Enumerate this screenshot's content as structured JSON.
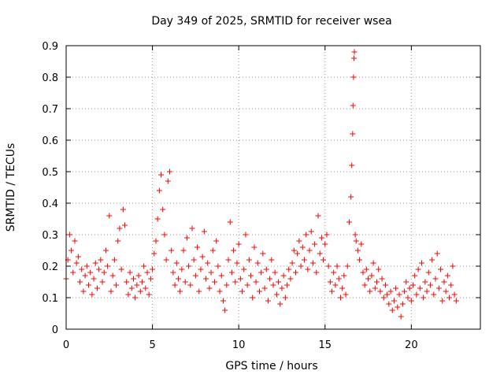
{
  "chart_data": {
    "type": "scatter",
    "title": "Day 349 of 2025, SRMTID for receiver wsea",
    "xlabel": "GPS time / hours",
    "ylabel": "SRMTID / TECUs",
    "xlim": [
      0,
      24
    ],
    "ylim": [
      0,
      0.9
    ],
    "xticks": [
      0,
      5,
      10,
      15,
      20
    ],
    "xtick_labels": [
      "0",
      "5",
      "10",
      "15",
      "20"
    ],
    "yticks": [
      0,
      0.1,
      0.2,
      0.3,
      0.4,
      0.5,
      0.6,
      0.7,
      0.8,
      0.9
    ],
    "ytick_labels": [
      "0",
      "0.1",
      "0.2",
      "0.3",
      "0.4",
      "0.5",
      "0.6",
      "0.7",
      "0.8",
      "0.9"
    ],
    "grid": true,
    "marker": "+",
    "series_color": "#ff0000",
    "series": [
      {
        "name": "SRMTID",
        "points": [
          [
            0.0,
            0.16
          ],
          [
            0.1,
            0.22
          ],
          [
            0.2,
            0.3
          ],
          [
            0.3,
            0.25
          ],
          [
            0.4,
            0.18
          ],
          [
            0.5,
            0.28
          ],
          [
            0.6,
            0.21
          ],
          [
            0.7,
            0.23
          ],
          [
            0.8,
            0.15
          ],
          [
            0.9,
            0.19
          ],
          [
            1.0,
            0.12
          ],
          [
            1.1,
            0.17
          ],
          [
            1.2,
            0.2
          ],
          [
            1.3,
            0.14
          ],
          [
            1.4,
            0.18
          ],
          [
            1.5,
            0.11
          ],
          [
            1.6,
            0.16
          ],
          [
            1.7,
            0.21
          ],
          [
            1.8,
            0.13
          ],
          [
            1.9,
            0.19
          ],
          [
            2.0,
            0.22
          ],
          [
            2.1,
            0.15
          ],
          [
            2.2,
            0.18
          ],
          [
            2.3,
            0.25
          ],
          [
            2.4,
            0.2
          ],
          [
            2.5,
            0.36
          ],
          [
            2.6,
            0.12
          ],
          [
            2.7,
            0.17
          ],
          [
            2.8,
            0.22
          ],
          [
            2.9,
            0.14
          ],
          [
            3.0,
            0.28
          ],
          [
            3.1,
            0.32
          ],
          [
            3.2,
            0.19
          ],
          [
            3.3,
            0.38
          ],
          [
            3.4,
            0.33
          ],
          [
            3.5,
            0.15
          ],
          [
            3.6,
            0.11
          ],
          [
            3.7,
            0.18
          ],
          [
            3.8,
            0.13
          ],
          [
            3.9,
            0.16
          ],
          [
            4.0,
            0.1
          ],
          [
            4.1,
            0.14
          ],
          [
            4.2,
            0.17
          ],
          [
            4.3,
            0.12
          ],
          [
            4.4,
            0.15
          ],
          [
            4.5,
            0.2
          ],
          [
            4.6,
            0.13
          ],
          [
            4.7,
            0.18
          ],
          [
            4.8,
            0.11
          ],
          [
            4.9,
            0.16
          ],
          [
            5.0,
            0.19
          ],
          [
            5.1,
            0.24
          ],
          [
            5.2,
            0.28
          ],
          [
            5.3,
            0.35
          ],
          [
            5.4,
            0.44
          ],
          [
            5.5,
            0.49
          ],
          [
            5.6,
            0.38
          ],
          [
            5.7,
            0.3
          ],
          [
            5.8,
            0.22
          ],
          [
            5.9,
            0.47
          ],
          [
            6.0,
            0.5
          ],
          [
            6.1,
            0.25
          ],
          [
            6.2,
            0.18
          ],
          [
            6.3,
            0.14
          ],
          [
            6.4,
            0.21
          ],
          [
            6.5,
            0.16
          ],
          [
            6.6,
            0.12
          ],
          [
            6.7,
            0.19
          ],
          [
            6.8,
            0.25
          ],
          [
            6.9,
            0.15
          ],
          [
            7.0,
            0.29
          ],
          [
            7.1,
            0.2
          ],
          [
            7.2,
            0.14
          ],
          [
            7.3,
            0.32
          ],
          [
            7.4,
            0.22
          ],
          [
            7.5,
            0.17
          ],
          [
            7.6,
            0.26
          ],
          [
            7.7,
            0.12
          ],
          [
            7.8,
            0.19
          ],
          [
            7.9,
            0.23
          ],
          [
            8.0,
            0.31
          ],
          [
            8.1,
            0.16
          ],
          [
            8.2,
            0.21
          ],
          [
            8.3,
            0.13
          ],
          [
            8.4,
            0.18
          ],
          [
            8.5,
            0.25
          ],
          [
            8.6,
            0.15
          ],
          [
            8.7,
            0.28
          ],
          [
            8.8,
            0.2
          ],
          [
            8.9,
            0.12
          ],
          [
            9.0,
            0.17
          ],
          [
            9.1,
            0.09
          ],
          [
            9.2,
            0.06
          ],
          [
            9.3,
            0.14
          ],
          [
            9.4,
            0.22
          ],
          [
            9.5,
            0.34
          ],
          [
            9.6,
            0.18
          ],
          [
            9.7,
            0.25
          ],
          [
            9.8,
            0.15
          ],
          [
            9.9,
            0.21
          ],
          [
            10.0,
            0.27
          ],
          [
            10.1,
            0.16
          ],
          [
            10.2,
            0.12
          ],
          [
            10.3,
            0.19
          ],
          [
            10.4,
            0.3
          ],
          [
            10.5,
            0.14
          ],
          [
            10.6,
            0.22
          ],
          [
            10.7,
            0.17
          ],
          [
            10.8,
            0.1
          ],
          [
            10.9,
            0.26
          ],
          [
            11.0,
            0.15
          ],
          [
            11.1,
            0.21
          ],
          [
            11.2,
            0.12
          ],
          [
            11.3,
            0.18
          ],
          [
            11.4,
            0.24
          ],
          [
            11.5,
            0.13
          ],
          [
            11.6,
            0.19
          ],
          [
            11.7,
            0.09
          ],
          [
            11.8,
            0.16
          ],
          [
            11.9,
            0.22
          ],
          [
            12.0,
            0.14
          ],
          [
            12.1,
            0.18
          ],
          [
            12.2,
            0.11
          ],
          [
            12.3,
            0.15
          ],
          [
            12.4,
            0.08
          ],
          [
            12.5,
            0.13
          ],
          [
            12.6,
            0.17
          ],
          [
            12.7,
            0.1
          ],
          [
            12.8,
            0.14
          ],
          [
            12.9,
            0.19
          ],
          [
            13.0,
            0.16
          ],
          [
            13.1,
            0.21
          ],
          [
            13.2,
            0.25
          ],
          [
            13.3,
            0.18
          ],
          [
            13.4,
            0.24
          ],
          [
            13.5,
            0.28
          ],
          [
            13.6,
            0.2
          ],
          [
            13.7,
            0.26
          ],
          [
            13.8,
            0.22
          ],
          [
            13.9,
            0.3
          ],
          [
            14.0,
            0.19
          ],
          [
            14.1,
            0.25
          ],
          [
            14.2,
            0.31
          ],
          [
            14.3,
            0.21
          ],
          [
            14.4,
            0.27
          ],
          [
            14.5,
            0.18
          ],
          [
            14.6,
            0.36
          ],
          [
            14.7,
            0.24
          ],
          [
            14.8,
            0.29
          ],
          [
            14.9,
            0.22
          ],
          [
            15.0,
            0.27
          ],
          [
            15.1,
            0.3
          ],
          [
            15.2,
            0.2
          ],
          [
            15.3,
            0.15
          ],
          [
            15.4,
            0.12
          ],
          [
            15.5,
            0.18
          ],
          [
            15.6,
            0.14
          ],
          [
            15.7,
            0.2
          ],
          [
            15.8,
            0.16
          ],
          [
            15.9,
            0.1
          ],
          [
            16.0,
            0.13
          ],
          [
            16.1,
            0.17
          ],
          [
            16.2,
            0.11
          ],
          [
            16.3,
            0.2
          ],
          [
            16.4,
            0.34
          ],
          [
            16.5,
            0.42
          ],
          [
            16.55,
            0.52
          ],
          [
            16.6,
            0.62
          ],
          [
            16.62,
            0.71
          ],
          [
            16.65,
            0.8
          ],
          [
            16.68,
            0.86
          ],
          [
            16.7,
            0.88
          ],
          [
            16.75,
            0.3
          ],
          [
            16.8,
            0.28
          ],
          [
            16.9,
            0.25
          ],
          [
            17.0,
            0.22
          ],
          [
            17.1,
            0.27
          ],
          [
            17.2,
            0.18
          ],
          [
            17.3,
            0.14
          ],
          [
            17.4,
            0.19
          ],
          [
            17.5,
            0.16
          ],
          [
            17.6,
            0.12
          ],
          [
            17.7,
            0.17
          ],
          [
            17.8,
            0.21
          ],
          [
            17.9,
            0.13
          ],
          [
            18.0,
            0.15
          ],
          [
            18.1,
            0.19
          ],
          [
            18.2,
            0.12
          ],
          [
            18.3,
            0.16
          ],
          [
            18.4,
            0.1
          ],
          [
            18.5,
            0.14
          ],
          [
            18.6,
            0.11
          ],
          [
            18.7,
            0.08
          ],
          [
            18.8,
            0.12
          ],
          [
            18.9,
            0.06
          ],
          [
            19.0,
            0.09
          ],
          [
            19.1,
            0.13
          ],
          [
            19.2,
            0.07
          ],
          [
            19.3,
            0.11
          ],
          [
            19.4,
            0.04
          ],
          [
            19.5,
            0.08
          ],
          [
            19.6,
            0.12
          ],
          [
            19.7,
            0.15
          ],
          [
            19.8,
            0.1
          ],
          [
            19.9,
            0.13
          ],
          [
            20.0,
            0.09
          ],
          [
            20.1,
            0.14
          ],
          [
            20.2,
            0.17
          ],
          [
            20.3,
            0.11
          ],
          [
            20.4,
            0.19
          ],
          [
            20.5,
            0.13
          ],
          [
            20.6,
            0.21
          ],
          [
            20.7,
            0.1
          ],
          [
            20.8,
            0.15
          ],
          [
            20.9,
            0.12
          ],
          [
            21.0,
            0.18
          ],
          [
            21.1,
            0.14
          ],
          [
            21.2,
            0.22
          ],
          [
            21.3,
            0.11
          ],
          [
            21.4,
            0.16
          ],
          [
            21.5,
            0.24
          ],
          [
            21.6,
            0.13
          ],
          [
            21.7,
            0.19
          ],
          [
            21.8,
            0.09
          ],
          [
            21.9,
            0.15
          ],
          [
            22.0,
            0.12
          ],
          [
            22.1,
            0.17
          ],
          [
            22.2,
            0.1
          ],
          [
            22.3,
            0.14
          ],
          [
            22.4,
            0.2
          ],
          [
            22.5,
            0.11
          ],
          [
            22.6,
            0.09
          ]
        ]
      }
    ]
  }
}
